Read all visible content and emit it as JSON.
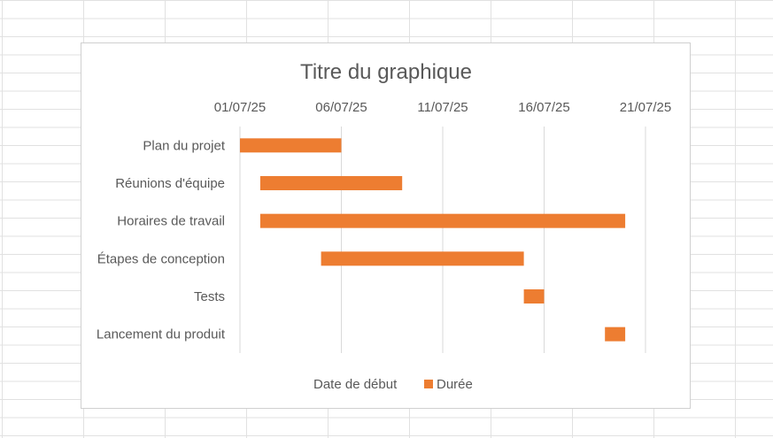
{
  "chart_data": {
    "type": "bar",
    "orientation": "horizontal-gantt",
    "title": "Titre du graphique",
    "x_axis_position": "top",
    "xlim": [
      "2025-07-01",
      "2025-07-21"
    ],
    "x_ticks": [
      "01/07/25",
      "06/07/25",
      "11/07/25",
      "16/07/25",
      "21/07/25"
    ],
    "grid": true,
    "legend_position": "bottom",
    "categories": [
      "Plan du projet",
      "Réunions d'équipe",
      "Horaires de travail",
      "Étapes de conception",
      "Tests",
      "Lancement du produit"
    ],
    "series": [
      {
        "name": "Date de début",
        "visible": false,
        "values": [
          "2025-07-01",
          "2025-07-02",
          "2025-07-02",
          "2025-07-05",
          "2025-07-15",
          "2025-07-19"
        ]
      },
      {
        "name": "Durée",
        "color": "#ED7D31",
        "values": [
          5,
          7,
          18,
          10,
          1,
          1
        ]
      }
    ]
  }
}
